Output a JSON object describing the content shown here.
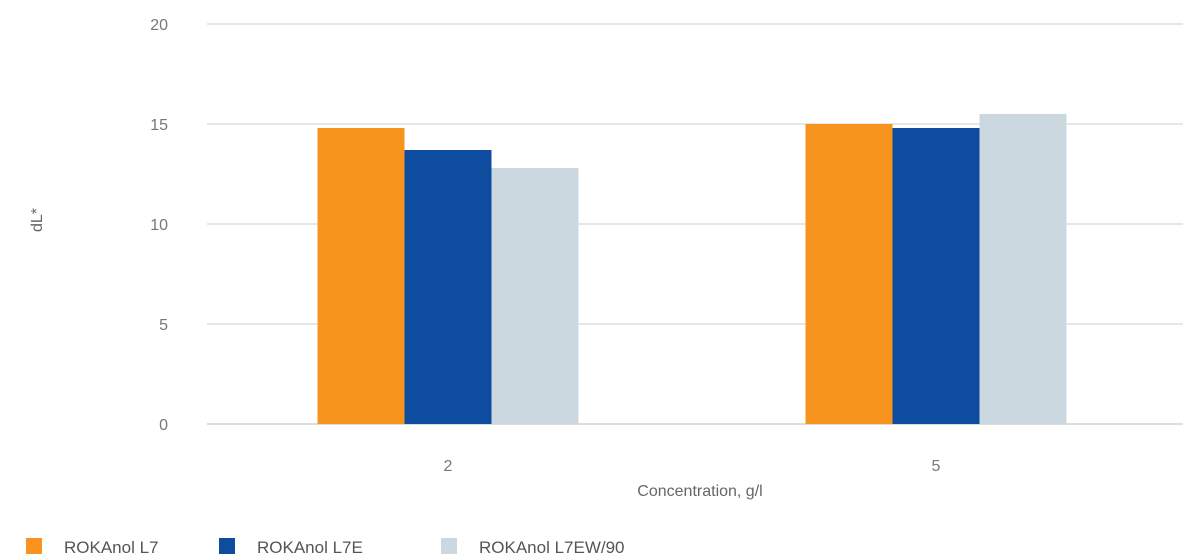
{
  "chart_data": {
    "type": "bar",
    "categories": [
      "2",
      "5"
    ],
    "series": [
      {
        "name": "ROKAnol L7",
        "color": "#F7941D",
        "values": [
          14.8,
          15.0
        ]
      },
      {
        "name": "ROKAnol L7E",
        "color": "#0D4C9E",
        "values": [
          13.7,
          14.8
        ]
      },
      {
        "name": "ROKAnol L7EW/90",
        "color": "#CBD8E0",
        "values": [
          12.8,
          15.5
        ]
      }
    ],
    "xlabel": "Concentration, g/l",
    "ylabel": "dL*",
    "ylim": [
      0,
      20
    ],
    "yticks": [
      0,
      5,
      10,
      15,
      20
    ],
    "grid": true,
    "legend_position": "bottom-left"
  }
}
